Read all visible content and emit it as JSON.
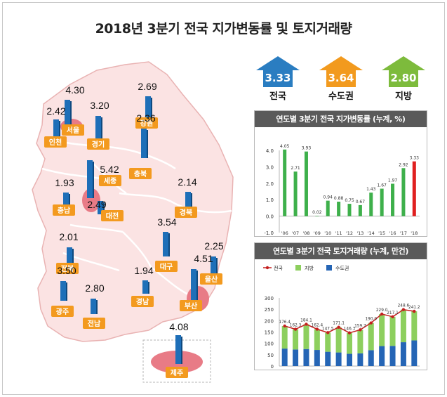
{
  "title": "2018년 3분기 전국 지가변동률 및 토지거래량",
  "summary": [
    {
      "label": "전국",
      "value": "3.33",
      "color": "#2a7dc1"
    },
    {
      "label": "수도권",
      "value": "3.64",
      "color": "#f29a1e"
    },
    {
      "label": "지방",
      "value": "2.80",
      "color": "#7dbb3c"
    }
  ],
  "map": {
    "regions": [
      {
        "name": "서울",
        "value": "4.30"
      },
      {
        "name": "인천",
        "value": "2.42"
      },
      {
        "name": "경기",
        "value": "3.20"
      },
      {
        "name": "강원",
        "value": "2.69"
      },
      {
        "name": "충북",
        "value": "2.36"
      },
      {
        "name": "세종",
        "value": "5.42"
      },
      {
        "name": "충남",
        "value": "1.93"
      },
      {
        "name": "대전",
        "value": "2.49"
      },
      {
        "name": "경북",
        "value": "2.14"
      },
      {
        "name": "전북",
        "value": "2.01"
      },
      {
        "name": "대구",
        "value": "3.54"
      },
      {
        "name": "울산",
        "value": "2.25"
      },
      {
        "name": "경남",
        "value": "1.94"
      },
      {
        "name": "부산",
        "value": "4.51"
      },
      {
        "name": "광주",
        "value": "3.50"
      },
      {
        "name": "전남",
        "value": "2.80"
      },
      {
        "name": "제주",
        "value": "4.08"
      }
    ]
  },
  "chart_data": [
    {
      "type": "bar",
      "title": "연도별 3분기 전국 지가변동률 (누계, %)",
      "categories": [
        "'06",
        "'07",
        "'08",
        "'09",
        "'10",
        "'11",
        "'12",
        "'13",
        "'14",
        "'15",
        "'16",
        "'17",
        "'18"
      ],
      "values": [
        4.05,
        2.71,
        3.93,
        0.02,
        0.94,
        0.88,
        0.75,
        0.67,
        1.43,
        1.67,
        1.97,
        2.92,
        3.33
      ],
      "labels": [
        "4.05",
        "2.71",
        "3.93",
        "0.02",
        "0.94",
        "0.88",
        "0.75",
        "0.67",
        "1.43",
        "1.67",
        "1.97",
        "2.92",
        "3.33"
      ],
      "yticks": [
        "4.0",
        "3.0",
        "2.0",
        "1.0",
        "0.0",
        "-1.0"
      ],
      "ylim": [
        -1.0,
        4.0
      ],
      "colors": {
        "bar": "#3eb04b",
        "highlight": "#e02020"
      }
    },
    {
      "type": "bar",
      "title": "연도별 3분기 전국 토지거래량 (누계, 만건)",
      "categories": [
        "'06",
        "'07",
        "'08",
        "'09",
        "'10",
        "'11",
        "'12",
        "'13",
        "'14",
        "'15",
        "'16",
        "'17",
        "'18"
      ],
      "legend": [
        "전국",
        "지방",
        "수도권"
      ],
      "series": [
        {
          "name": "수도권",
          "values": [
            77,
            73,
            75,
            71,
            63,
            60,
            54,
            56,
            70,
            88,
            89,
            105,
            113
          ]
        },
        {
          "name": "지방",
          "values": [
            99.4,
            89.3,
            109.1,
            91.4,
            84.5,
            111.1,
            92.3,
            103.7,
            120.0,
            141.0,
            128.1,
            143.6,
            128.2
          ]
        },
        {
          "name": "전국",
          "values": [
            176.4,
            162.3,
            184.1,
            162.4,
            147.5,
            171.1,
            146.3,
            159.7,
            190.0,
            229.0,
            217.1,
            248.6,
            241.2
          ]
        }
      ],
      "labels": [
        "176.4",
        "162.3",
        "184.1",
        "162.4",
        "147.5",
        "171.1",
        "146.3",
        "159.7",
        "190.0",
        "229.0",
        "217.1",
        "248.6",
        "241.2"
      ],
      "yticks": [
        "300",
        "250",
        "200",
        "150",
        "100",
        "50",
        "0"
      ],
      "ylim": [
        0,
        300
      ],
      "colors": {
        "total": "#c41f1f",
        "local": "#8dcf5e",
        "capital": "#2565b5"
      }
    }
  ]
}
